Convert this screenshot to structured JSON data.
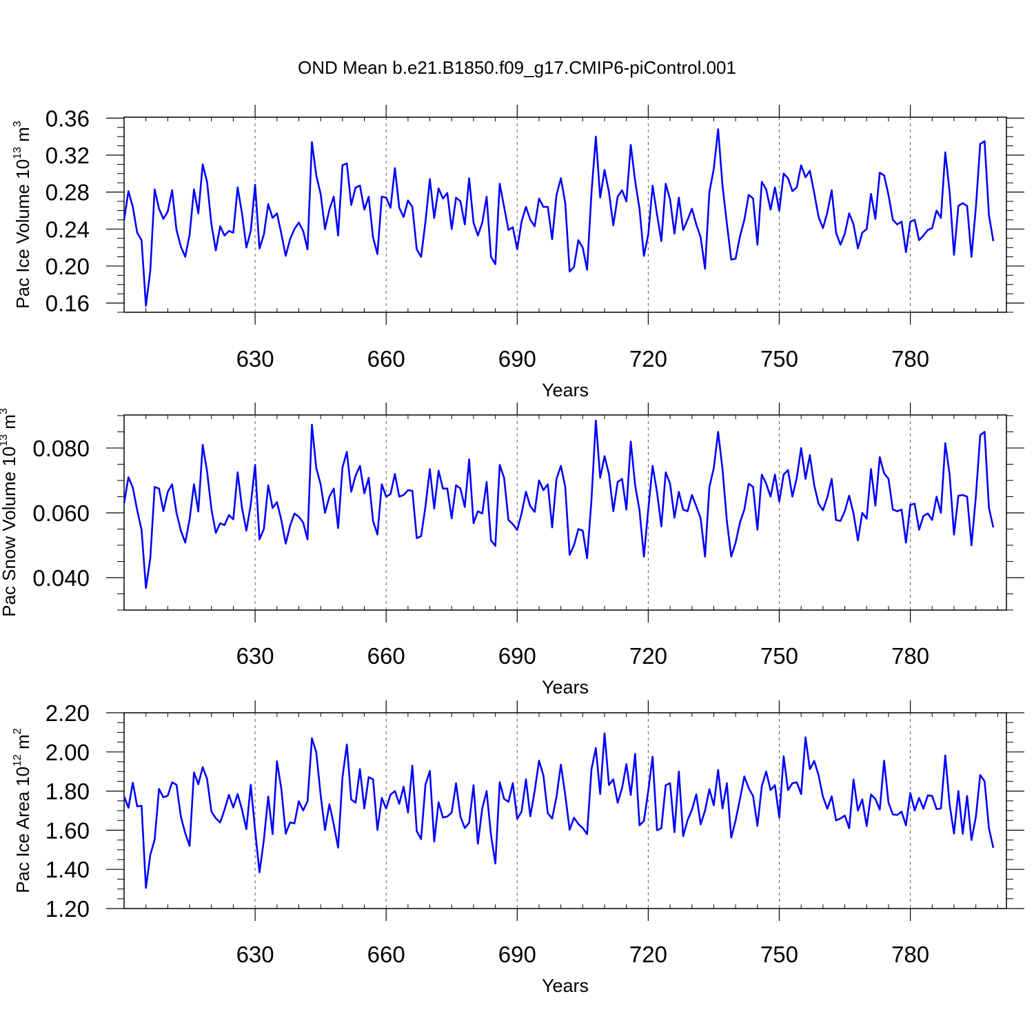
{
  "title": "OND Mean b.e21.B1850.f09_g17.CMIP6-piControl.001",
  "line_color": "#0000ff",
  "chart_data": [
    {
      "type": "line",
      "title": "",
      "xlabel": "Years",
      "ylabel_base": "Pac Ice Volume 10",
      "ylabel_exp": "13",
      "ylabel_unit": " m",
      "ylabel_unit_exp": "3",
      "xlim": [
        600,
        802
      ],
      "ylim": [
        0.15,
        0.361
      ],
      "yticks": [
        0.16,
        0.2,
        0.24,
        0.28,
        0.32,
        0.36
      ],
      "ytick_labels": [
        "0.16",
        "0.20",
        "0.24",
        "0.28",
        "0.32",
        "0.36"
      ],
      "xticks": [
        630,
        660,
        690,
        720,
        750,
        780
      ],
      "xtick_labels": [
        "630",
        "660",
        "690",
        "720",
        "750",
        "780"
      ],
      "x_start": 600,
      "series": [
        {
          "name": "Pac Ice Volume",
          "values": [
            0.25,
            0.281,
            0.264,
            0.236,
            0.228,
            0.157,
            0.195,
            0.283,
            0.262,
            0.251,
            0.259,
            0.282,
            0.239,
            0.221,
            0.21,
            0.234,
            0.283,
            0.257,
            0.31,
            0.291,
            0.245,
            0.217,
            0.243,
            0.233,
            0.238,
            0.236,
            0.285,
            0.257,
            0.22,
            0.238,
            0.288,
            0.219,
            0.234,
            0.267,
            0.252,
            0.257,
            0.235,
            0.211,
            0.229,
            0.24,
            0.247,
            0.238,
            0.218,
            0.334,
            0.298,
            0.278,
            0.24,
            0.261,
            0.275,
            0.233,
            0.309,
            0.311,
            0.266,
            0.285,
            0.287,
            0.261,
            0.275,
            0.231,
            0.213,
            0.275,
            0.274,
            0.263,
            0.306,
            0.263,
            0.253,
            0.271,
            0.264,
            0.218,
            0.21,
            0.248,
            0.294,
            0.252,
            0.284,
            0.273,
            0.279,
            0.24,
            0.274,
            0.27,
            0.245,
            0.295,
            0.247,
            0.233,
            0.247,
            0.275,
            0.21,
            0.202,
            0.289,
            0.264,
            0.239,
            0.242,
            0.218,
            0.248,
            0.264,
            0.25,
            0.243,
            0.273,
            0.264,
            0.264,
            0.229,
            0.277,
            0.295,
            0.268,
            0.194,
            0.199,
            0.228,
            0.22,
            0.196,
            0.279,
            0.34,
            0.274,
            0.304,
            0.28,
            0.244,
            0.275,
            0.282,
            0.27,
            0.331,
            0.292,
            0.262,
            0.211,
            0.234,
            0.287,
            0.256,
            0.227,
            0.289,
            0.272,
            0.235,
            0.274,
            0.239,
            0.25,
            0.262,
            0.245,
            0.231,
            0.197,
            0.28,
            0.305,
            0.348,
            0.287,
            0.246,
            0.207,
            0.208,
            0.232,
            0.25,
            0.277,
            0.273,
            0.223,
            0.291,
            0.283,
            0.261,
            0.285,
            0.26,
            0.3,
            0.295,
            0.281,
            0.285,
            0.309,
            0.296,
            0.303,
            0.279,
            0.253,
            0.241,
            0.258,
            0.282,
            0.236,
            0.223,
            0.235,
            0.257,
            0.245,
            0.219,
            0.236,
            0.24,
            0.278,
            0.251,
            0.301,
            0.298,
            0.277,
            0.25,
            0.245,
            0.248,
            0.215,
            0.248,
            0.25,
            0.228,
            0.233,
            0.239,
            0.241,
            0.26,
            0.252,
            0.323,
            0.28,
            0.212,
            0.265,
            0.268,
            0.265,
            0.21,
            0.263,
            0.332,
            0.335,
            0.255,
            0.227
          ]
        }
      ]
    },
    {
      "type": "line",
      "title": "",
      "xlabel": "Years",
      "ylabel_base": "Pac Snow Volume 10",
      "ylabel_exp": "13",
      "ylabel_unit": " m",
      "ylabel_unit_exp": "3",
      "xlim": [
        600,
        802
      ],
      "ylim": [
        0.03,
        0.0902
      ],
      "yticks": [
        0.04,
        0.06,
        0.08
      ],
      "ytick_labels": [
        "0.040",
        "0.060",
        "0.080"
      ],
      "xticks": [
        630,
        660,
        690,
        720,
        750,
        780
      ],
      "xtick_labels": [
        "630",
        "660",
        "690",
        "720",
        "750",
        "780"
      ],
      "x_start": 600,
      "series": [
        {
          "name": "Pac Snow Volume",
          "values": [
            0.063,
            0.071,
            0.0678,
            0.0608,
            0.0548,
            0.0368,
            0.046,
            0.068,
            0.0675,
            0.0605,
            0.0665,
            0.0688,
            0.06,
            0.0545,
            0.0508,
            0.058,
            0.0688,
            0.0604,
            0.081,
            0.0728,
            0.0611,
            0.0538,
            0.0568,
            0.0562,
            0.0593,
            0.058,
            0.0725,
            0.0615,
            0.0545,
            0.0625,
            0.0748,
            0.0518,
            0.055,
            0.0685,
            0.0615,
            0.0633,
            0.0578,
            0.0505,
            0.056,
            0.0598,
            0.0588,
            0.057,
            0.0518,
            0.0872,
            0.0738,
            0.0688,
            0.06,
            0.065,
            0.0675,
            0.0553,
            0.074,
            0.0788,
            0.0665,
            0.0715,
            0.0745,
            0.066,
            0.0708,
            0.0575,
            0.0533,
            0.0688,
            0.065,
            0.0658,
            0.072,
            0.065,
            0.0655,
            0.067,
            0.0668,
            0.0522,
            0.0528,
            0.062,
            0.0735,
            0.0613,
            0.073,
            0.0675,
            0.0675,
            0.0583,
            0.0685,
            0.0675,
            0.0618,
            0.0765,
            0.0568,
            0.0605,
            0.0598,
            0.0695,
            0.0515,
            0.0498,
            0.0748,
            0.0708,
            0.0578,
            0.0565,
            0.0547,
            0.0598,
            0.0665,
            0.062,
            0.0603,
            0.07,
            0.067,
            0.0688,
            0.0555,
            0.0705,
            0.0745,
            0.068,
            0.047,
            0.05,
            0.055,
            0.0545,
            0.046,
            0.064,
            0.0885,
            0.0708,
            0.0775,
            0.072,
            0.0605,
            0.0695,
            0.0705,
            0.061,
            0.082,
            0.0685,
            0.0608,
            0.0465,
            0.061,
            0.0745,
            0.0665,
            0.0558,
            0.0725,
            0.069,
            0.0585,
            0.0665,
            0.061,
            0.0605,
            0.0655,
            0.062,
            0.0583,
            0.0465,
            0.068,
            0.0738,
            0.085,
            0.0735,
            0.0575,
            0.0465,
            0.0508,
            0.057,
            0.061,
            0.069,
            0.068,
            0.0548,
            0.0718,
            0.069,
            0.065,
            0.0718,
            0.0635,
            0.0718,
            0.0732,
            0.065,
            0.0708,
            0.08,
            0.0705,
            0.0778,
            0.0685,
            0.0628,
            0.0608,
            0.0648,
            0.0705,
            0.0578,
            0.0575,
            0.0605,
            0.0653,
            0.0598,
            0.0515,
            0.06,
            0.0582,
            0.0735,
            0.0622,
            0.0772,
            0.0722,
            0.0705,
            0.061,
            0.0605,
            0.061,
            0.0508,
            0.0625,
            0.0628,
            0.0548,
            0.059,
            0.0598,
            0.0578,
            0.065,
            0.06,
            0.0815,
            0.0718,
            0.0533,
            0.0653,
            0.0655,
            0.065,
            0.05,
            0.065,
            0.084,
            0.085,
            0.0615,
            0.0555
          ]
        }
      ]
    },
    {
      "type": "line",
      "title": "",
      "xlabel": "Years",
      "ylabel_base": "Pac Ice Area 10",
      "ylabel_exp": "12",
      "ylabel_unit": " m",
      "ylabel_unit_exp": "2",
      "xlim": [
        600,
        802
      ],
      "ylim": [
        1.2,
        2.2
      ],
      "yticks": [
        1.2,
        1.4,
        1.6,
        1.8,
        2.0,
        2.2
      ],
      "ytick_labels": [
        "1.20",
        "1.40",
        "1.60",
        "1.80",
        "2.00",
        "2.20"
      ],
      "xticks": [
        630,
        660,
        690,
        720,
        750,
        780
      ],
      "xtick_labels": [
        "630",
        "660",
        "690",
        "720",
        "750",
        "780"
      ],
      "x_start": 600,
      "series": [
        {
          "name": "Pac Ice Area",
          "values": [
            1.772,
            1.715,
            1.843,
            1.722,
            1.725,
            1.305,
            1.474,
            1.552,
            1.811,
            1.768,
            1.777,
            1.845,
            1.832,
            1.67,
            1.585,
            1.52,
            1.895,
            1.835,
            1.922,
            1.862,
            1.695,
            1.661,
            1.64,
            1.705,
            1.781,
            1.716,
            1.785,
            1.705,
            1.605,
            1.832,
            1.6,
            1.385,
            1.55,
            1.772,
            1.58,
            1.952,
            1.812,
            1.582,
            1.64,
            1.635,
            1.748,
            1.701,
            1.748,
            2.07,
            1.998,
            1.78,
            1.601,
            1.733,
            1.63,
            1.511,
            1.87,
            2.038,
            1.757,
            1.741,
            1.912,
            1.711,
            1.871,
            1.86,
            1.601,
            1.765,
            1.711,
            1.782,
            1.8,
            1.735,
            1.823,
            1.69,
            1.93,
            1.595,
            1.555,
            1.833,
            1.903,
            1.542,
            1.743,
            1.665,
            1.67,
            1.69,
            1.84,
            1.67,
            1.611,
            1.638,
            1.83,
            1.531,
            1.712,
            1.8,
            1.575,
            1.43,
            1.845,
            1.76,
            1.745,
            1.841,
            1.658,
            1.695,
            1.86,
            1.671,
            1.8,
            1.955,
            1.88,
            1.687,
            1.66,
            1.771,
            1.935,
            1.78,
            1.602,
            1.664,
            1.632,
            1.611,
            1.58,
            1.911,
            2.02,
            1.785,
            2.095,
            1.831,
            1.86,
            1.74,
            1.815,
            1.938,
            1.78,
            1.99,
            1.625,
            1.647,
            1.8,
            1.976,
            1.6,
            1.61,
            1.83,
            1.84,
            1.59,
            1.9,
            1.57,
            1.651,
            1.705,
            1.783,
            1.63,
            1.7,
            1.81,
            1.727,
            1.908,
            1.711,
            1.84,
            1.562,
            1.65,
            1.76,
            1.875,
            1.815,
            1.775,
            1.622,
            1.825,
            1.9,
            1.805,
            1.83,
            1.665,
            1.978,
            1.805,
            1.84,
            1.845,
            1.785,
            2.075,
            1.912,
            1.954,
            1.88,
            1.771,
            1.71,
            1.773,
            1.65,
            1.66,
            1.675,
            1.61,
            1.859,
            1.7,
            1.758,
            1.621,
            1.782,
            1.76,
            1.705,
            1.955,
            1.741,
            1.681,
            1.678,
            1.695,
            1.625,
            1.79,
            1.701,
            1.765,
            1.71,
            1.778,
            1.775,
            1.708,
            1.711,
            1.982,
            1.73,
            1.583,
            1.8,
            1.582,
            1.775,
            1.55,
            1.668,
            1.882,
            1.85,
            1.61,
            1.51
          ]
        }
      ]
    }
  ]
}
